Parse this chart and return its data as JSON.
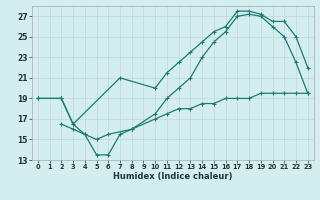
{
  "xlabel": "Humidex (Indice chaleur)",
  "bg_color": "#d4eef0",
  "line_color": "#1e7a72",
  "grid_color": "#c0dde0",
  "xlim": [
    -0.5,
    23.5
  ],
  "ylim": [
    13,
    28
  ],
  "xticks": [
    0,
    1,
    2,
    3,
    4,
    5,
    6,
    7,
    8,
    9,
    10,
    11,
    12,
    13,
    14,
    15,
    16,
    17,
    18,
    19,
    20,
    21,
    22,
    23
  ],
  "yticks": [
    13,
    15,
    17,
    19,
    21,
    23,
    25,
    27
  ],
  "line1_x": [
    0,
    2,
    3,
    4,
    5,
    6,
    7,
    8,
    10,
    11,
    12,
    13,
    14,
    15,
    16,
    17,
    18,
    19,
    20,
    21,
    22,
    23
  ],
  "line1_y": [
    19,
    19,
    16.5,
    15.5,
    13.5,
    13.5,
    15.5,
    16,
    17.5,
    19,
    20,
    21,
    23,
    24.5,
    25.5,
    27,
    27.2,
    27,
    26,
    25,
    22.5,
    19.5
  ],
  "line2_x": [
    0,
    2,
    3,
    7,
    10,
    11,
    12,
    13,
    14,
    15,
    16,
    17,
    18,
    19,
    20,
    21,
    22,
    23
  ],
  "line2_y": [
    19,
    19,
    16.5,
    21,
    20,
    21.5,
    22.5,
    23.5,
    24.5,
    25.5,
    26,
    27.5,
    27.5,
    27.2,
    26.5,
    26.5,
    25,
    22
  ],
  "line3_x": [
    2,
    3,
    4,
    5,
    6,
    8,
    10,
    11,
    12,
    13,
    14,
    15,
    16,
    17,
    18,
    19,
    20,
    21,
    22,
    23
  ],
  "line3_y": [
    16.5,
    16,
    15.5,
    15,
    15.5,
    16,
    17,
    17.5,
    18,
    18,
    18.5,
    18.5,
    19,
    19,
    19,
    19.5,
    19.5,
    19.5,
    19.5,
    19.5
  ]
}
